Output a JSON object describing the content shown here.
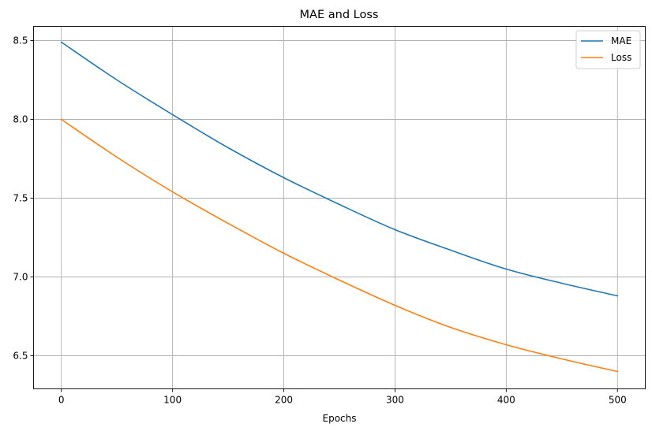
{
  "chart_data": {
    "type": "line",
    "title": "MAE and Loss",
    "xlabel": "Epochs",
    "ylabel": "",
    "xlim": [
      -25,
      525
    ],
    "ylim": [
      6.29,
      8.59
    ],
    "xticks": [
      0,
      100,
      200,
      300,
      400,
      500
    ],
    "yticks": [
      6.5,
      7.0,
      7.5,
      8.0,
      8.5
    ],
    "grid": true,
    "legend_position": "top-right",
    "x": [
      0,
      50,
      100,
      150,
      200,
      250,
      300,
      350,
      400,
      450,
      500
    ],
    "series": [
      {
        "name": "MAE",
        "color": "#1f77b4",
        "values": [
          8.49,
          8.25,
          8.03,
          7.82,
          7.63,
          7.46,
          7.3,
          7.17,
          7.05,
          6.96,
          6.88
        ]
      },
      {
        "name": "Loss",
        "color": "#ff7f0e",
        "values": [
          8.0,
          7.76,
          7.54,
          7.34,
          7.15,
          6.98,
          6.82,
          6.68,
          6.57,
          6.48,
          6.4
        ]
      }
    ]
  }
}
